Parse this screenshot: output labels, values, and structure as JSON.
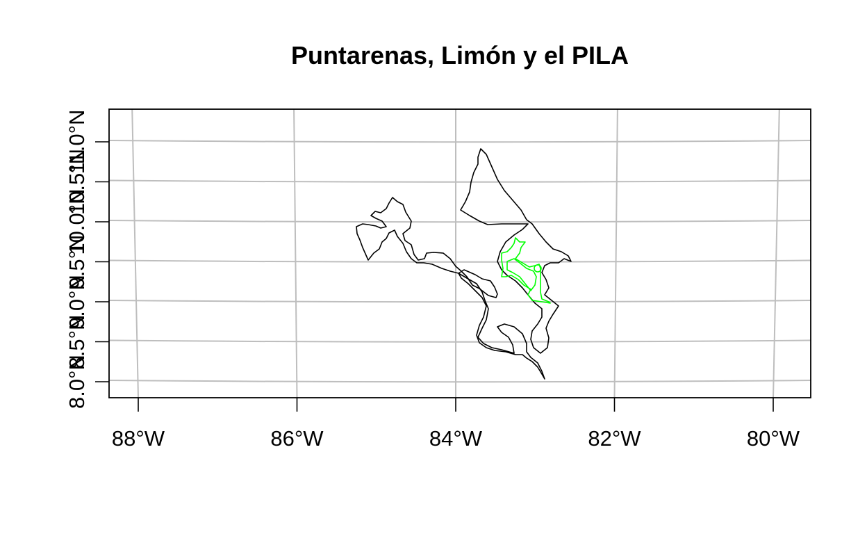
{
  "title": "Puntarenas, Limón y el PILA",
  "colors": {
    "province_outline": "#000000",
    "park_outline": "#00ff00",
    "graticule": "#bebebe",
    "background": "#ffffff"
  },
  "chart_data": {
    "type": "map",
    "title": "Puntarenas, Limón y el PILA",
    "xlabel": "",
    "ylabel": "",
    "xlim": [
      -88.35,
      -79.55
    ],
    "ylim": [
      8.0,
      11.0
    ],
    "graticule": true,
    "x_ticks": [
      {
        "value": -88,
        "label": "88°W"
      },
      {
        "value": -86,
        "label": "86°W"
      },
      {
        "value": -84,
        "label": "84°W"
      },
      {
        "value": -82,
        "label": "82°W"
      },
      {
        "value": -80,
        "label": "80°W"
      }
    ],
    "y_ticks": [
      {
        "value": 8.0,
        "label": "8.0°N"
      },
      {
        "value": 8.5,
        "label": "8.5°N"
      },
      {
        "value": 9.0,
        "label": "9.0°N"
      },
      {
        "value": 9.5,
        "label": "9.5°N"
      },
      {
        "value": 10.0,
        "label": "10.0°N"
      },
      {
        "value": 10.5,
        "label": "10.5°N"
      },
      {
        "value": 11.0,
        "label": "11.0°N"
      }
    ],
    "layers": [
      {
        "name": "Puntarenas",
        "kind": "province",
        "color": "#000000"
      },
      {
        "name": "Limón",
        "kind": "province",
        "color": "#000000"
      },
      {
        "name": "PILA",
        "kind": "protected-area",
        "color": "#00ff00"
      }
    ]
  }
}
